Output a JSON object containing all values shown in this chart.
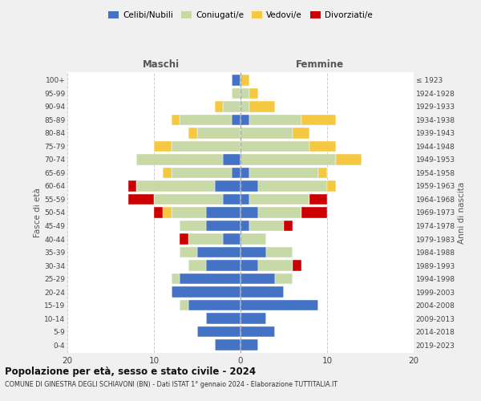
{
  "age_groups": [
    "0-4",
    "5-9",
    "10-14",
    "15-19",
    "20-24",
    "25-29",
    "30-34",
    "35-39",
    "40-44",
    "45-49",
    "50-54",
    "55-59",
    "60-64",
    "65-69",
    "70-74",
    "75-79",
    "80-84",
    "85-89",
    "90-94",
    "95-99",
    "100+"
  ],
  "birth_years": [
    "2019-2023",
    "2014-2018",
    "2009-2013",
    "2004-2008",
    "1999-2003",
    "1994-1998",
    "1989-1993",
    "1984-1988",
    "1979-1983",
    "1974-1978",
    "1969-1973",
    "1964-1968",
    "1959-1963",
    "1954-1958",
    "1949-1953",
    "1944-1948",
    "1939-1943",
    "1934-1938",
    "1929-1933",
    "1924-1928",
    "≤ 1923"
  ],
  "colors": {
    "celibi": "#4472C4",
    "coniugati": "#c8d9a8",
    "vedovi": "#f5c842",
    "divorziati": "#cc0000"
  },
  "maschi": {
    "celibi": [
      3,
      5,
      4,
      6,
      8,
      7,
      4,
      5,
      2,
      4,
      4,
      2,
      3,
      1,
      2,
      0,
      0,
      1,
      0,
      0,
      1
    ],
    "coniugati": [
      0,
      0,
      0,
      1,
      0,
      1,
      2,
      2,
      4,
      3,
      4,
      8,
      9,
      7,
      10,
      8,
      5,
      6,
      2,
      1,
      0
    ],
    "vedovi": [
      0,
      0,
      0,
      0,
      0,
      0,
      0,
      0,
      0,
      0,
      1,
      0,
      0,
      1,
      0,
      2,
      1,
      1,
      1,
      0,
      0
    ],
    "divorziati": [
      0,
      0,
      0,
      0,
      0,
      0,
      0,
      0,
      1,
      0,
      1,
      3,
      1,
      0,
      0,
      0,
      0,
      0,
      0,
      0,
      0
    ]
  },
  "femmine": {
    "celibi": [
      2,
      4,
      3,
      9,
      5,
      4,
      2,
      3,
      0,
      1,
      2,
      1,
      2,
      1,
      0,
      0,
      0,
      1,
      0,
      0,
      0
    ],
    "coniugati": [
      0,
      0,
      0,
      0,
      0,
      2,
      4,
      3,
      3,
      4,
      5,
      7,
      8,
      8,
      11,
      8,
      6,
      6,
      1,
      1,
      0
    ],
    "vedovi": [
      0,
      0,
      0,
      0,
      0,
      0,
      0,
      0,
      0,
      0,
      0,
      0,
      1,
      1,
      3,
      3,
      2,
      4,
      3,
      1,
      1
    ],
    "divorziati": [
      0,
      0,
      0,
      0,
      0,
      0,
      1,
      0,
      0,
      1,
      3,
      2,
      0,
      0,
      0,
      0,
      0,
      0,
      0,
      0,
      0
    ]
  },
  "title": "Popolazione per età, sesso e stato civile - 2024",
  "subtitle": "COMUNE DI GINESTRA DEGLI SCHIAVONI (BN) - Dati ISTAT 1° gennaio 2024 - Elaborazione TUTTITALIA.IT",
  "xlabel_left": "Maschi",
  "xlabel_right": "Femmine",
  "ylabel": "Fasce di età",
  "ylabel_right": "Anni di nascita",
  "xlim": 20,
  "background_color": "#f0f0f0",
  "bar_background": "#ffffff",
  "grid_color": "#cccccc"
}
